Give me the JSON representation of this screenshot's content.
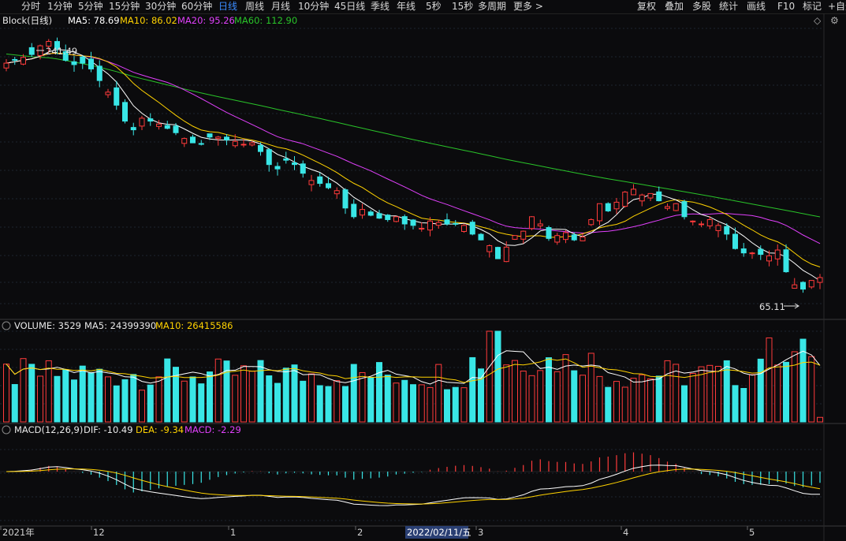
{
  "toolbar": {
    "periods": [
      "分时",
      "1分钟",
      "5分钟",
      "15分钟",
      "30分钟",
      "60分钟",
      "日线",
      "周线",
      "月线",
      "10分钟",
      "45日线",
      "季线",
      "年线",
      "5秒",
      "15秒",
      "多周期",
      "更多 >"
    ],
    "active_period": "日线",
    "right_tools": [
      "复权",
      "叠加",
      "多股",
      "统计",
      "画线",
      "F10",
      "标记",
      "+自选"
    ]
  },
  "price_panel": {
    "title": "Block(日线)",
    "ma5": "MA5: 78.69",
    "ma10": "MA10: 86.02",
    "ma20": "MA20: 95.26",
    "ma60": "MA60: 112.90",
    "high_label": "241.49",
    "low_label": "65.11"
  },
  "volume_panel": {
    "vol": "VOLUME: 3529",
    "ma5": "MA5: 24399390",
    "ma10": "MA10: 26415586"
  },
  "macd_panel": {
    "title": "MACD(12,26,9)",
    "dif": "DIF: -10.49",
    "dea": "DEA: -9.34",
    "macd": "MACD: -2.29"
  },
  "x_axis": {
    "labels": [
      "2021年",
      "12",
      "1",
      "2",
      "3",
      "4",
      "5"
    ],
    "cursor_date": "2022/02/11/五"
  },
  "colors": {
    "up": "#ff3b3b",
    "down": "#39e6e6",
    "ma5": "#ffffff",
    "ma10": "#ffd200",
    "ma20": "#e040fb",
    "ma60": "#29c329",
    "active": "#3b8cff"
  },
  "chart_data": {
    "type": "candlestick",
    "price_range": [
      60,
      250
    ],
    "close": [
      226,
      228,
      230,
      232,
      238,
      241,
      236,
      228,
      225,
      226,
      222,
      214,
      206,
      197,
      186,
      180,
      188,
      186,
      184,
      181,
      178,
      174,
      171,
      170,
      175,
      175,
      173,
      172,
      170,
      171,
      165,
      156,
      153,
      159,
      156,
      150,
      145,
      143,
      140,
      138,
      126,
      120,
      125,
      121,
      119,
      118,
      120,
      115,
      114,
      112,
      117,
      116,
      115,
      115,
      114,
      108,
      104,
      100,
      91,
      99,
      107,
      110,
      120,
      115,
      105,
      107,
      109,
      104,
      106,
      118,
      129,
      124,
      130,
      137,
      139,
      135,
      136,
      131,
      127,
      129,
      120,
      117,
      115,
      118,
      114,
      108,
      98,
      95,
      95,
      94,
      93,
      97,
      82,
      73,
      70,
      76,
      78
    ]
  }
}
